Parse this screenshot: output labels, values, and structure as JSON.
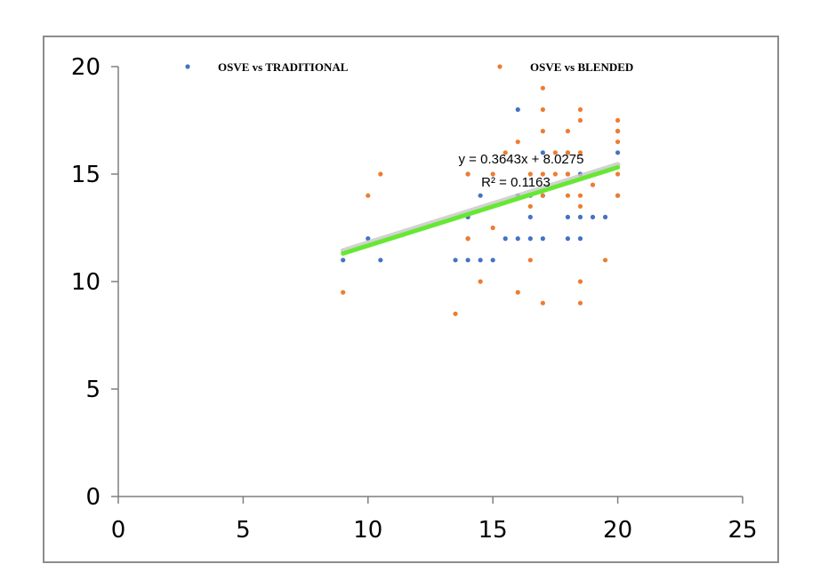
{
  "colors": {
    "series1": "#4472c4",
    "series2": "#ed7d31",
    "trendline": "#66e833",
    "trend_shadow": "#c8c8c8",
    "axis": "#7f7f7f",
    "frame": "#8c8c8c"
  },
  "chart_data": {
    "type": "scatter",
    "title": "",
    "xlabel": "",
    "ylabel": "",
    "xlim": [
      0,
      25
    ],
    "ylim": [
      0,
      20
    ],
    "x_ticks": [
      "0",
      "5",
      "10",
      "15",
      "20",
      "25"
    ],
    "y_ticks": [
      "0",
      "5",
      "10",
      "15",
      "20"
    ],
    "grid": false,
    "legend": "top",
    "series": [
      {
        "name": "OSVE vs TRADITIONAL",
        "color": "#4472c4",
        "points": [
          [
            9,
            11
          ],
          [
            10,
            12
          ],
          [
            10.5,
            11
          ],
          [
            13.5,
            11
          ],
          [
            14,
            11
          ],
          [
            14,
            12
          ],
          [
            14,
            13
          ],
          [
            14,
            15
          ],
          [
            14.5,
            14
          ],
          [
            14.5,
            11
          ],
          [
            15,
            11
          ],
          [
            15.5,
            12
          ],
          [
            16,
            12
          ],
          [
            16,
            14
          ],
          [
            16,
            18
          ],
          [
            16.5,
            12
          ],
          [
            16.5,
            13
          ],
          [
            16.5,
            14
          ],
          [
            17,
            12
          ],
          [
            17,
            16
          ],
          [
            17,
            14
          ],
          [
            18,
            12
          ],
          [
            18,
            13
          ],
          [
            18,
            15
          ],
          [
            18,
            16
          ],
          [
            18.5,
            12
          ],
          [
            18.5,
            13
          ],
          [
            18.5,
            15
          ],
          [
            19,
            13
          ],
          [
            19.5,
            13
          ],
          [
            20,
            14
          ],
          [
            20,
            16
          ],
          [
            20,
            17
          ]
        ]
      },
      {
        "name": "OSVE vs BLENDED",
        "color": "#ed7d31",
        "points": [
          [
            9,
            9.5
          ],
          [
            10,
            14
          ],
          [
            10.5,
            15
          ],
          [
            13.5,
            8.5
          ],
          [
            14,
            12
          ],
          [
            14,
            15
          ],
          [
            14.5,
            10
          ],
          [
            15,
            12.5
          ],
          [
            15,
            15
          ],
          [
            15.5,
            16
          ],
          [
            16,
            9.5
          ],
          [
            16,
            16.5
          ],
          [
            16.5,
            11
          ],
          [
            16.5,
            13.5
          ],
          [
            16.5,
            15
          ],
          [
            17,
            9
          ],
          [
            17,
            14
          ],
          [
            17,
            15
          ],
          [
            17,
            17
          ],
          [
            17,
            18
          ],
          [
            17,
            19
          ],
          [
            17.5,
            15
          ],
          [
            17.5,
            16
          ],
          [
            18,
            14
          ],
          [
            18,
            15
          ],
          [
            18,
            16
          ],
          [
            18,
            17
          ],
          [
            18.5,
            9
          ],
          [
            18.5,
            10
          ],
          [
            18.5,
            13.5
          ],
          [
            18.5,
            14
          ],
          [
            18.5,
            16
          ],
          [
            18.5,
            17.5
          ],
          [
            18.5,
            18
          ],
          [
            19,
            14.5
          ],
          [
            19.5,
            11
          ],
          [
            20,
            14
          ],
          [
            20,
            15
          ],
          [
            20,
            16.5
          ],
          [
            20,
            17
          ],
          [
            20,
            17.5
          ]
        ]
      }
    ],
    "trendline": {
      "slope": 0.3643,
      "intercept": 8.0275,
      "x_range": [
        9,
        20
      ],
      "equation": "y = 0.3643x + 8.0275",
      "r_squared": "R² = 0.1163"
    }
  }
}
